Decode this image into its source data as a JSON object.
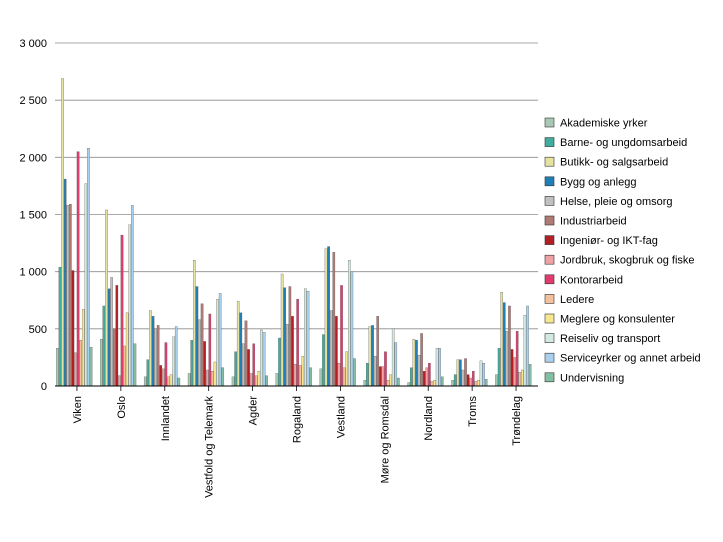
{
  "chart_data": {
    "type": "bar",
    "title": "",
    "xlabel": "",
    "ylabel": "",
    "ylim": [
      0,
      3000
    ],
    "y_ticks": [
      "0",
      "500",
      "1 000",
      "1 500",
      "2 000",
      "2 500",
      "3 000"
    ],
    "grid": true,
    "legend_position": "right",
    "categories": [
      "Viken",
      "Oslo",
      "Innlandet",
      "Vestfold og Telemark",
      "Agder",
      "Rogaland",
      "Vestland",
      "Møre og Romsdal",
      "Nordland",
      "Troms",
      "Trøndelag"
    ],
    "series": [
      {
        "name": "Akademiske yrker",
        "color": "#a8c8b4",
        "values": [
          330,
          410,
          80,
          110,
          80,
          110,
          150,
          50,
          30,
          50,
          100
        ]
      },
      {
        "name": "Barne- og ungdomsarbeid",
        "color": "#3fae9f",
        "values": [
          1040,
          700,
          230,
          400,
          300,
          420,
          450,
          200,
          160,
          100,
          330
        ]
      },
      {
        "name": "Butikk- og salgsarbeid",
        "color": "#e6e3a0",
        "values": [
          2690,
          1540,
          660,
          1100,
          740,
          980,
          1200,
          520,
          410,
          230,
          820
        ]
      },
      {
        "name": "Bygg og anlegg",
        "color": "#1f7fb6",
        "values": [
          1810,
          850,
          610,
          870,
          640,
          860,
          1220,
          530,
          400,
          230,
          730
        ]
      },
      {
        "name": "Helse, pleie og omsorg",
        "color": "#c0c0c0",
        "values": [
          1580,
          950,
          500,
          580,
          370,
          540,
          660,
          260,
          270,
          140,
          480
        ]
      },
      {
        "name": "Industriarbeid",
        "color": "#b07b74",
        "values": [
          1590,
          500,
          530,
          720,
          570,
          870,
          1170,
          610,
          460,
          240,
          700
        ]
      },
      {
        "name": "Ingeniør- og IKT-fag",
        "color": "#b21f24",
        "values": [
          1010,
          880,
          180,
          390,
          320,
          610,
          610,
          170,
          130,
          100,
          320
        ]
      },
      {
        "name": "Jordbruk, skogbruk og fiske",
        "color": "#f0a2a2",
        "values": [
          290,
          90,
          150,
          140,
          110,
          190,
          200,
          170,
          160,
          70,
          250
        ]
      },
      {
        "name": "Kontorarbeid",
        "color": "#e23c6e",
        "values": [
          2050,
          1320,
          380,
          630,
          370,
          760,
          880,
          300,
          200,
          130,
          480
        ]
      },
      {
        "name": "Ledere",
        "color": "#f5c19c",
        "values": [
          400,
          350,
          80,
          130,
          90,
          180,
          160,
          50,
          40,
          40,
          120
        ]
      },
      {
        "name": "Meglere og konsulenter",
        "color": "#f7e690",
        "values": [
          670,
          640,
          100,
          210,
          130,
          260,
          300,
          100,
          50,
          50,
          140
        ]
      },
      {
        "name": "Reiseliv og transport",
        "color": "#d2e8e0",
        "values": [
          1770,
          1410,
          430,
          760,
          490,
          850,
          1100,
          500,
          330,
          220,
          620
        ]
      },
      {
        "name": "Serviceyrker og annet arbeid",
        "color": "#a9d1ef",
        "values": [
          2080,
          1580,
          520,
          810,
          470,
          830,
          1000,
          380,
          330,
          200,
          700
        ]
      },
      {
        "name": "Undervisning",
        "color": "#84bfa4",
        "values": [
          340,
          370,
          70,
          160,
          90,
          160,
          240,
          70,
          80,
          60,
          190
        ]
      }
    ]
  }
}
